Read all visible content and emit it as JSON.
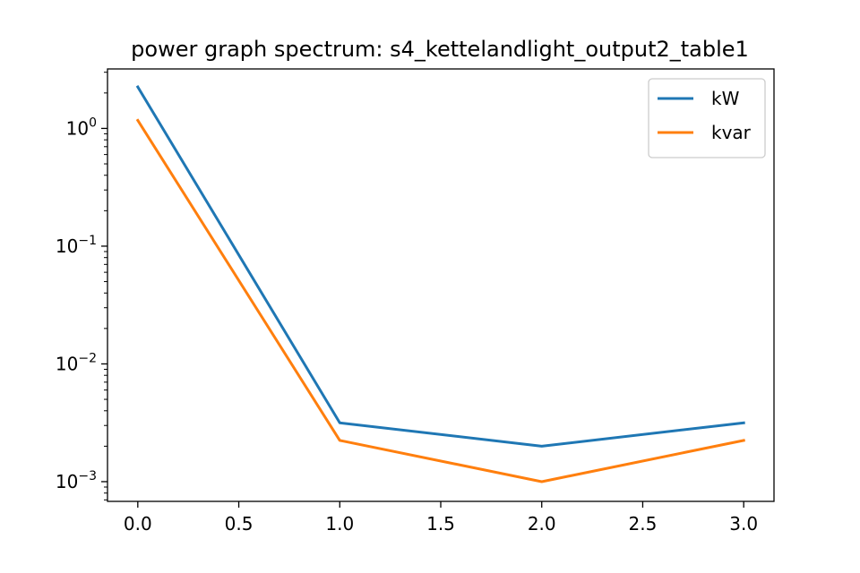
{
  "chart_data": {
    "type": "line",
    "title": "power graph spectrum: s4_kettelandlight_output2_table1",
    "xlabel": "",
    "ylabel": "",
    "yscale": "log",
    "xlim": [
      -0.15,
      3.15
    ],
    "ylim": [
      0.00068,
      3.2
    ],
    "x_ticks": [
      0.0,
      0.5,
      1.0,
      1.5,
      2.0,
      2.5,
      3.0
    ],
    "x_tick_labels": [
      "0.0",
      "0.5",
      "1.0",
      "1.5",
      "2.0",
      "2.5",
      "3.0"
    ],
    "y_ticks": [
      {
        "value": 1,
        "base": "10",
        "exp": "0"
      },
      {
        "value": 0.1,
        "base": "10",
        "exp": "−1"
      },
      {
        "value": 0.01,
        "base": "10",
        "exp": "−2"
      },
      {
        "value": 0.001,
        "base": "10",
        "exp": "−3"
      }
    ],
    "grid": false,
    "legend_position": "top-right",
    "x": [
      0,
      1,
      2,
      3
    ],
    "series": [
      {
        "name": "kW",
        "color": "#1f77b4",
        "values": [
          2.25,
          0.00316,
          0.002,
          0.00316
        ]
      },
      {
        "name": "kvar",
        "color": "#ff7f0e",
        "values": [
          1.17,
          0.00224,
          0.001,
          0.00224
        ]
      }
    ]
  }
}
